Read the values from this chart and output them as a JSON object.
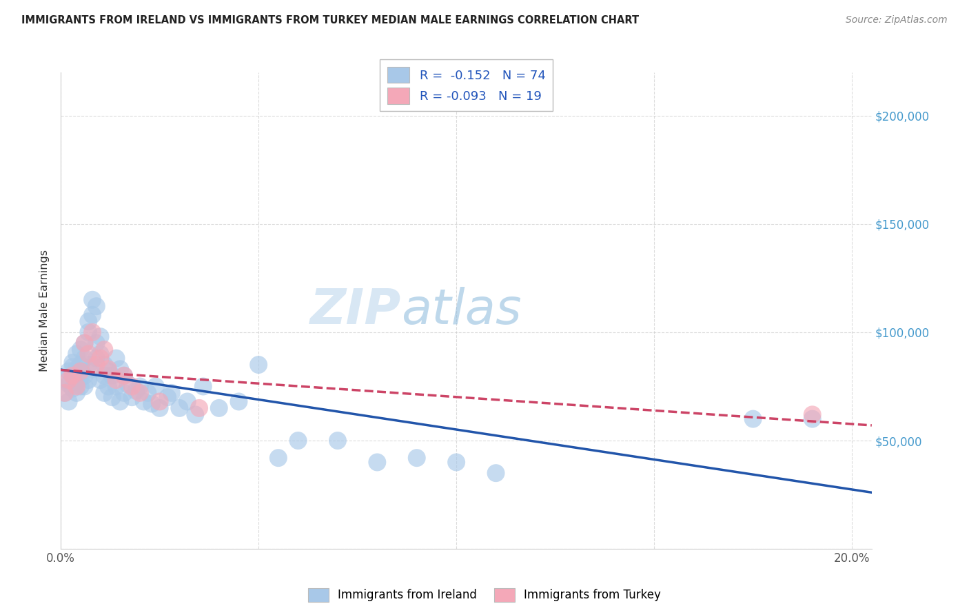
{
  "title": "IMMIGRANTS FROM IRELAND VS IMMIGRANTS FROM TURKEY MEDIAN MALE EARNINGS CORRELATION CHART",
  "source": "Source: ZipAtlas.com",
  "ylabel": "Median Male Earnings",
  "ireland_color": "#a8c8e8",
  "turkey_color": "#f4a8b8",
  "ireland_line_color": "#2255aa",
  "turkey_line_color": "#cc4466",
  "ireland_R": "-0.152",
  "ireland_N": "74",
  "turkey_R": "-0.093",
  "turkey_N": "19",
  "legend_label_ireland": "Immigrants from Ireland",
  "legend_label_turkey": "Immigrants from Turkey",
  "watermark_zip": "ZIP",
  "watermark_atlas": "atlas",
  "background_color": "#ffffff",
  "grid_color": "#cccccc",
  "ireland_x": [
    0.001,
    0.001,
    0.002,
    0.002,
    0.002,
    0.003,
    0.003,
    0.003,
    0.003,
    0.004,
    0.004,
    0.004,
    0.004,
    0.005,
    0.005,
    0.005,
    0.005,
    0.006,
    0.006,
    0.006,
    0.006,
    0.007,
    0.007,
    0.007,
    0.007,
    0.008,
    0.008,
    0.008,
    0.009,
    0.009,
    0.009,
    0.01,
    0.01,
    0.01,
    0.011,
    0.011,
    0.011,
    0.012,
    0.012,
    0.013,
    0.013,
    0.014,
    0.014,
    0.015,
    0.015,
    0.016,
    0.016,
    0.017,
    0.018,
    0.019,
    0.02,
    0.021,
    0.022,
    0.023,
    0.024,
    0.025,
    0.027,
    0.028,
    0.03,
    0.032,
    0.034,
    0.036,
    0.04,
    0.045,
    0.05,
    0.055,
    0.06,
    0.07,
    0.08,
    0.09,
    0.1,
    0.11,
    0.175,
    0.19
  ],
  "ireland_y": [
    78000,
    72000,
    82000,
    76000,
    68000,
    84000,
    80000,
    74000,
    86000,
    90000,
    83000,
    77000,
    72000,
    85000,
    79000,
    75000,
    92000,
    95000,
    88000,
    80000,
    75000,
    105000,
    100000,
    85000,
    78000,
    115000,
    108000,
    83000,
    112000,
    95000,
    88000,
    98000,
    90000,
    78000,
    85000,
    80000,
    72000,
    82000,
    75000,
    80000,
    70000,
    88000,
    75000,
    83000,
    68000,
    80000,
    72000,
    76000,
    70000,
    73000,
    75000,
    68000,
    72000,
    67000,
    75000,
    65000,
    70000,
    72000,
    65000,
    68000,
    62000,
    75000,
    65000,
    68000,
    85000,
    42000,
    50000,
    50000,
    40000,
    42000,
    40000,
    35000,
    60000,
    60000
  ],
  "turkey_x": [
    0.001,
    0.002,
    0.003,
    0.004,
    0.005,
    0.006,
    0.007,
    0.008,
    0.009,
    0.01,
    0.011,
    0.012,
    0.014,
    0.016,
    0.018,
    0.02,
    0.025,
    0.035,
    0.19
  ],
  "turkey_y": [
    72000,
    78000,
    80000,
    75000,
    82000,
    95000,
    90000,
    100000,
    85000,
    88000,
    92000,
    83000,
    78000,
    80000,
    75000,
    72000,
    68000,
    65000,
    62000
  ],
  "xlim": [
    0.0,
    0.205
  ],
  "ylim": [
    0,
    220000
  ],
  "ytick_positions": [
    0,
    50000,
    100000,
    150000,
    200000
  ],
  "ytick_labels": [
    "",
    "$50,000",
    "$100,000",
    "$150,000",
    "$200,000"
  ],
  "xtick_positions": [
    0.0,
    0.05,
    0.1,
    0.15,
    0.2
  ],
  "xtick_labels": [
    "0.0%",
    "",
    "",
    "",
    "20.0%"
  ]
}
